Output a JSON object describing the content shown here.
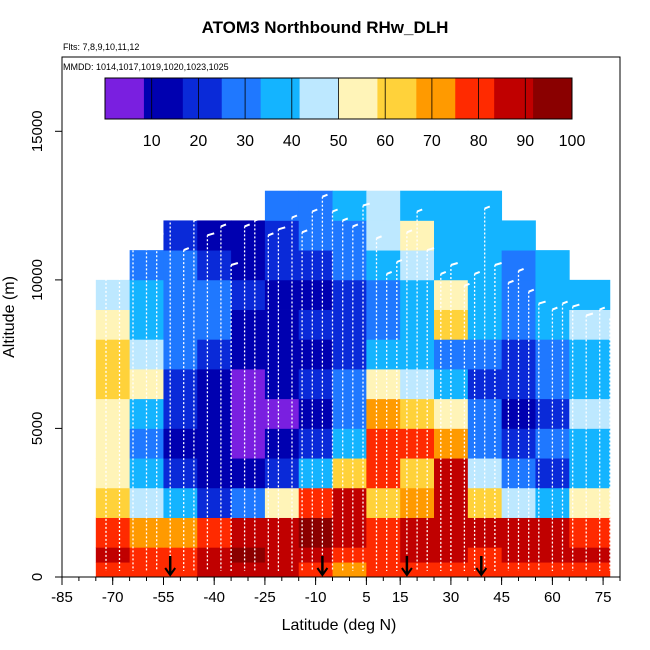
{
  "chart_data": {
    "type": "heatmap",
    "title": "ATOM3 Northbound RHw_DLH",
    "flights_label": "Flts: 7,8,9,10,11,12",
    "dates_label": "MMDD: 1014,1017,1019,1020,1023,1025",
    "xlabel": "Latitude (deg N)",
    "ylabel": "Altitude (m)",
    "xlim": [
      -85,
      80
    ],
    "ylim": [
      0,
      17500
    ],
    "x_ticks": [
      -85,
      -70,
      -55,
      -40,
      -25,
      -10,
      5,
      15,
      30,
      45,
      60,
      75
    ],
    "y_ticks": [
      0,
      5000,
      10000,
      15000
    ],
    "colorbar": {
      "min": 0,
      "max": 100,
      "ticks": [
        10,
        20,
        30,
        40,
        50,
        60,
        70,
        80,
        90,
        100
      ],
      "colors": [
        "#7a1fe0",
        "#0000b0",
        "#0a2ad8",
        "#1f78ff",
        "#14b4ff",
        "#bde8ff",
        "#fff4b8",
        "#ffd23a",
        "#ff9a00",
        "#ff2a00",
        "#c00000",
        "#8a0000"
      ]
    },
    "field": {
      "lat_edges": [
        -75,
        -65,
        -55,
        -45,
        -35,
        -25,
        -15,
        -5,
        5,
        15,
        25,
        35,
        45,
        55,
        65,
        77
      ],
      "alt_edges": [
        0,
        500,
        1000,
        2000,
        3000,
        4000,
        5000,
        6000,
        7000,
        8000,
        9000,
        10000,
        11000,
        12000,
        13000
      ],
      "rh_rows": [
        [
          80,
          75,
          80,
          88,
          88,
          85,
          80,
          70,
          75,
          80,
          82,
          78,
          80,
          82,
          80
        ],
        [
          85,
          80,
          82,
          90,
          92,
          90,
          85,
          78,
          80,
          85,
          88,
          82,
          85,
          88,
          85
        ],
        [
          78,
          70,
          70,
          75,
          88,
          90,
          92,
          88,
          75,
          85,
          90,
          85,
          88,
          85,
          80
        ],
        [
          60,
          45,
          35,
          20,
          30,
          55,
          75,
          85,
          60,
          70,
          85,
          60,
          45,
          40,
          50
        ],
        [
          55,
          35,
          20,
          15,
          15,
          20,
          40,
          60,
          75,
          60,
          85,
          45,
          25,
          20,
          40
        ],
        [
          50,
          25,
          15,
          12,
          8,
          10,
          20,
          40,
          80,
          78,
          70,
          30,
          20,
          25,
          35
        ],
        [
          55,
          40,
          18,
          10,
          6,
          8,
          15,
          30,
          72,
          65,
          50,
          25,
          15,
          20,
          45
        ],
        [
          65,
          50,
          22,
          14,
          8,
          10,
          18,
          25,
          55,
          45,
          35,
          20,
          18,
          25,
          35
        ],
        [
          60,
          45,
          25,
          18,
          12,
          12,
          15,
          18,
          35,
          40,
          30,
          25,
          20,
          30,
          40
        ],
        [
          55,
          40,
          30,
          25,
          15,
          15,
          18,
          20,
          30,
          35,
          60,
          35,
          30,
          35,
          45
        ],
        [
          45,
          38,
          30,
          25,
          20,
          15,
          15,
          18,
          30,
          40,
          50,
          35,
          30,
          35,
          40
        ],
        [
          null,
          30,
          25,
          20,
          15,
          18,
          20,
          25,
          40,
          45,
          40,
          35,
          30,
          40,
          null
        ],
        [
          null,
          null,
          20,
          15,
          15,
          20,
          25,
          30,
          45,
          50,
          40,
          35,
          40,
          null,
          null
        ],
        [
          null,
          null,
          null,
          null,
          null,
          25,
          30,
          35,
          45,
          40,
          35,
          40,
          null,
          null,
          null
        ]
      ]
    },
    "profile_latitudes": [
      -72,
      -68,
      -64,
      -60,
      -57,
      -53,
      -49,
      -46,
      -42,
      -38,
      -35,
      -31,
      -28,
      -24,
      -21,
      -17,
      -14,
      -11,
      -8,
      -5,
      -2,
      1,
      4,
      8,
      11,
      14,
      17,
      20,
      23,
      27,
      30,
      34,
      37,
      40,
      43,
      47,
      50,
      53,
      56,
      60,
      63,
      66,
      70,
      74,
      77
    ],
    "arrows_lat": [
      -53,
      -8,
      17,
      39
    ]
  }
}
